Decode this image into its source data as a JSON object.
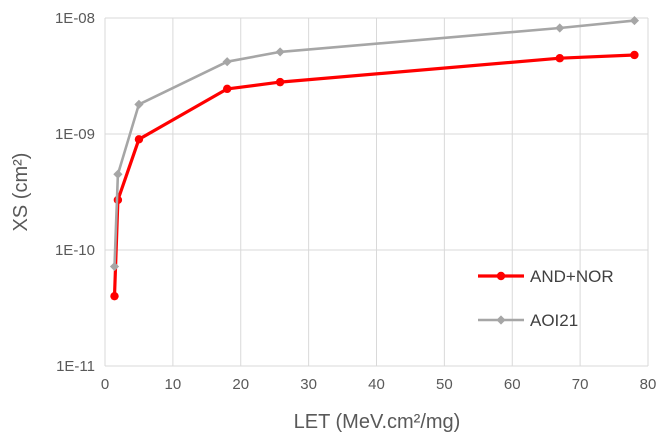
{
  "chart_data": {
    "type": "line",
    "title": "",
    "xlabel": "LET (MeV.cm²/mg)",
    "ylabel": "XS (cm²)",
    "xlim": [
      0,
      80
    ],
    "ylim": [
      1e-11,
      1e-08
    ],
    "yscale": "log",
    "grid": true,
    "legend_position": "right",
    "x_tick_labels": [
      "0",
      "10",
      "20",
      "30",
      "40",
      "50",
      "60",
      "70",
      "80"
    ],
    "y_tick_labels": [
      "1E-11",
      "1E-10",
      "1E-09",
      "1E-08"
    ],
    "series": [
      {
        "name": "AND+NOR",
        "color": "#ff0000",
        "marker": "circle",
        "x": [
          1.4,
          1.9,
          5.0,
          18.0,
          25.8,
          67.0,
          78.0
        ],
        "y": [
          4e-11,
          2.7e-10,
          9e-10,
          2.45e-09,
          2.8e-09,
          4.5e-09,
          4.8e-09
        ]
      },
      {
        "name": "AOI21",
        "color": "#a6a6a6",
        "marker": "diamond",
        "x": [
          1.4,
          1.9,
          5.0,
          18.0,
          25.8,
          67.0,
          78.0
        ],
        "y": [
          7.2e-11,
          4.5e-10,
          1.8e-09,
          4.2e-09,
          5.1e-09,
          8.2e-09,
          9.5e-09
        ]
      }
    ]
  }
}
